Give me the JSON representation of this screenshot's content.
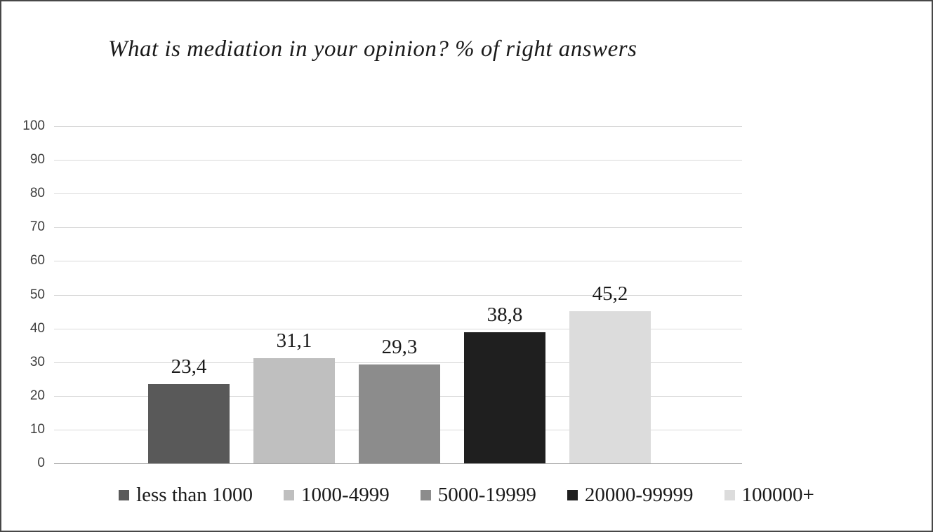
{
  "chart_data": {
    "type": "bar",
    "title": "What is mediation in your opinion? % of right answers",
    "categories": [
      "less than 1000",
      "1000-4999",
      "5000-19999",
      "20000-99999",
      "100000+"
    ],
    "values": [
      23.4,
      31.1,
      29.3,
      38.8,
      45.2
    ],
    "value_labels": [
      "23,4",
      "31,1",
      "29,3",
      "38,8",
      "45,2"
    ],
    "bar_colors": [
      "#595959",
      "#bfbfbf",
      "#8c8c8c",
      "#1f1f1f",
      "#dcdcdc"
    ],
    "xlabel": "",
    "ylabel": "",
    "ylim": [
      0,
      100
    ],
    "yticks": [
      0,
      10,
      20,
      30,
      40,
      50,
      60,
      70,
      80,
      90,
      100
    ],
    "grid": true,
    "legend_position": "bottom",
    "gridline_color": "#d9d9d9",
    "axis_line_color": "#a6a6a6"
  }
}
